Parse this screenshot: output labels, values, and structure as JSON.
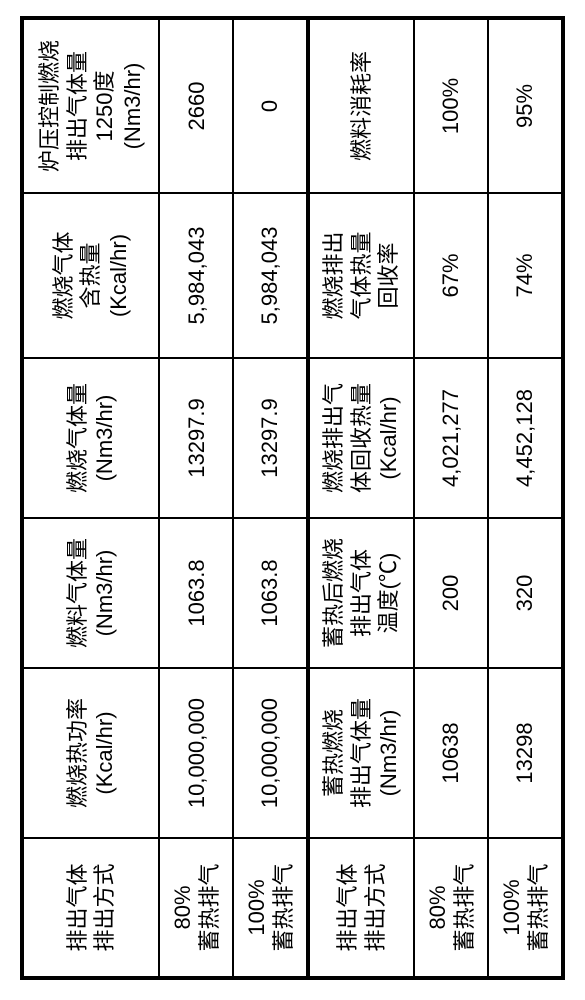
{
  "table_top": {
    "headers": {
      "method": "排出气体\n排出方式",
      "col1": "燃烧热功率\n(Kcal/hr)",
      "col2": "燃料气体量\n(Nm3/hr)",
      "col3": "燃烧气体量\n(Nm3/hr)",
      "col4": "燃烧气体\n含热量\n(Kcal/hr)",
      "col5": "炉压控制燃烧\n排出气体量\n1250度\n(Nm3/hr)"
    },
    "rows": [
      {
        "method": "80%\n蓄热排气",
        "col1": "10,000,000",
        "col2": "1063.8",
        "col3": "13297.9",
        "col4": "5,984,043",
        "col5": "2660"
      },
      {
        "method": "100%\n蓄热排气",
        "col1": "10,000,000",
        "col2": "1063.8",
        "col3": "13297.9",
        "col4": "5,984,043",
        "col5": "0"
      }
    ]
  },
  "table_bottom": {
    "headers": {
      "method": "排出气体\n排出方式",
      "col1": "蓄热燃烧\n排出气体量\n(Nm3/hr)",
      "col2": "蓄热后燃烧\n排出气体\n温度(℃)",
      "col3": "燃烧排出气\n体回收热量\n(Kcal/hr)",
      "col4": "燃烧排出\n气体热量\n回收率",
      "col5": "燃料消耗率"
    },
    "rows": [
      {
        "method": "80%\n蓄热排气",
        "col1": "10638",
        "col2": "200",
        "col3": "4,021,277",
        "col4": "67%",
        "col5": "100%"
      },
      {
        "method": "100%\n蓄热排气",
        "col1": "13298",
        "col2": "320",
        "col3": "4,452,128",
        "col4": "74%",
        "col5": "95%"
      }
    ]
  },
  "style": {
    "font_size_header": 22,
    "font_size_cell": 22,
    "border_color": "#000000",
    "background": "#ffffff"
  }
}
